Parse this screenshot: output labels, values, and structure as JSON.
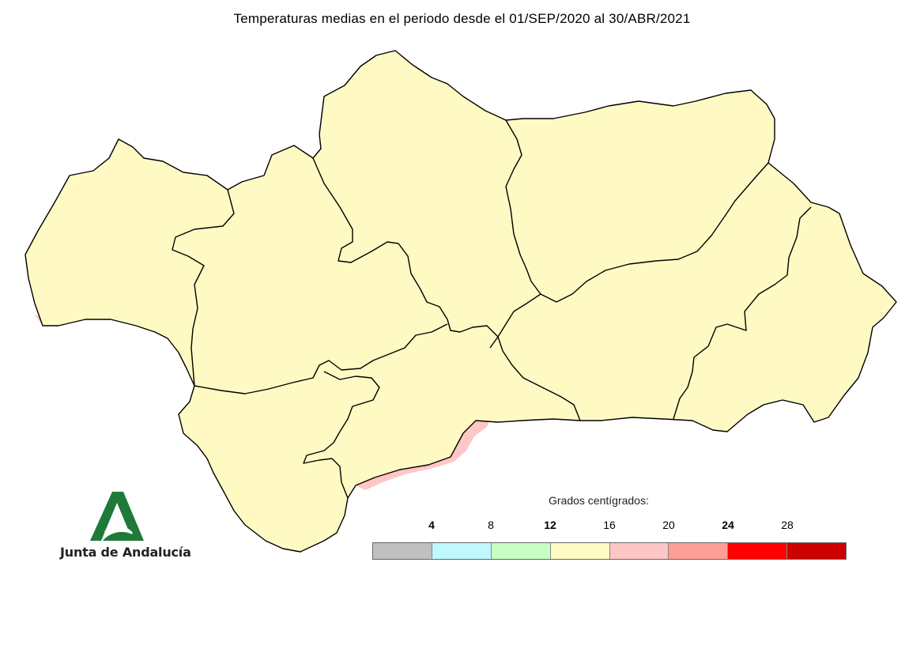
{
  "title": "Temperaturas medias en el periodo desde el 01/SEP/2020 al 30/ABR/2021",
  "logo": {
    "text": "Junta de Andalucía",
    "color": "#1f7a3a"
  },
  "legend": {
    "title": "Grados centígrados:",
    "ticks": [
      {
        "label": "4",
        "bold": true
      },
      {
        "label": "8",
        "bold": false
      },
      {
        "label": "12",
        "bold": true
      },
      {
        "label": "16",
        "bold": false
      },
      {
        "label": "20",
        "bold": false
      },
      {
        "label": "24",
        "bold": true
      },
      {
        "label": "28",
        "bold": false
      }
    ],
    "colors": [
      "#c0c0c0",
      "#bff8ff",
      "#c8ffc4",
      "#fffac3",
      "#ffc6c6",
      "#ff9e96",
      "#ff0000",
      "#cc0000"
    ]
  },
  "map_colors": {
    "base": "#fffac3",
    "cool": "#c8ffc4",
    "cold": "#bff8ff",
    "coldest": "#c0c0c0",
    "warm": "#ffc6c6",
    "border": "#000000"
  }
}
